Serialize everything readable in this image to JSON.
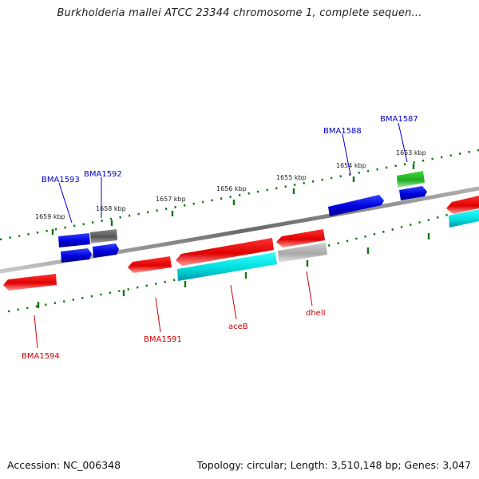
{
  "title": "Burkholderia mallei ATCC 23344 chromosome 1, complete sequen...",
  "footer": {
    "accession": "Accession: NC_006348",
    "summary": "Topology: circular; Length: 3,510,148 bp; Genes: 3,047"
  },
  "colors": {
    "forward_strand": "#0000ee",
    "reverse_strand": "#ee0000",
    "backbone": "#7a7a7a",
    "tick": "#117711",
    "rna": "#22bb22",
    "pseudo": "#666666",
    "cyan_feature": "#00e5ee",
    "gray_feature": "#aaaaaa"
  },
  "ticks": [
    {
      "label": "1659 kbp"
    },
    {
      "label": "1658 kbp"
    },
    {
      "label": "1657 kbp"
    },
    {
      "label": "1656 kbp"
    },
    {
      "label": "1655 kbp"
    },
    {
      "label": "1654 kbp"
    },
    {
      "label": "1653 kbp"
    }
  ],
  "genes": [
    {
      "name": "BMA1593",
      "strand": "forward"
    },
    {
      "name": "BMA1592",
      "strand": "forward"
    },
    {
      "name": "BMA1588",
      "strand": "forward"
    },
    {
      "name": "BMA1587",
      "strand": "forward"
    },
    {
      "name": "BMA1594",
      "strand": "reverse"
    },
    {
      "name": "BMA1591",
      "strand": "reverse"
    },
    {
      "name": "aceB",
      "strand": "reverse"
    },
    {
      "name": "dhelI",
      "strand": "reverse"
    }
  ]
}
